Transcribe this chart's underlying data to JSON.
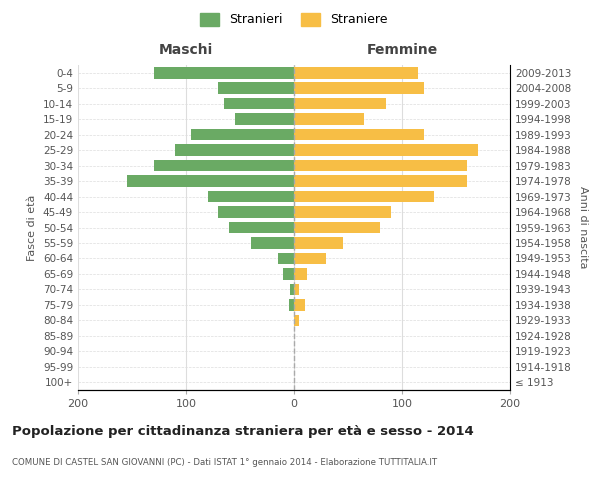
{
  "age_groups": [
    "100+",
    "95-99",
    "90-94",
    "85-89",
    "80-84",
    "75-79",
    "70-74",
    "65-69",
    "60-64",
    "55-59",
    "50-54",
    "45-49",
    "40-44",
    "35-39",
    "30-34",
    "25-29",
    "20-24",
    "15-19",
    "10-14",
    "5-9",
    "0-4"
  ],
  "birth_years": [
    "≤ 1913",
    "1914-1918",
    "1919-1923",
    "1924-1928",
    "1929-1933",
    "1934-1938",
    "1939-1943",
    "1944-1948",
    "1949-1953",
    "1954-1958",
    "1959-1963",
    "1964-1968",
    "1969-1973",
    "1974-1978",
    "1979-1983",
    "1984-1988",
    "1989-1993",
    "1994-1998",
    "1999-2003",
    "2004-2008",
    "2009-2013"
  ],
  "males": [
    0,
    0,
    0,
    0,
    0,
    5,
    4,
    10,
    15,
    40,
    60,
    70,
    80,
    155,
    130,
    110,
    95,
    55,
    65,
    70,
    130
  ],
  "females": [
    0,
    0,
    0,
    0,
    5,
    10,
    5,
    12,
    30,
    45,
    80,
    90,
    130,
    160,
    160,
    170,
    120,
    65,
    85,
    120,
    115
  ],
  "male_color": "#6aaa64",
  "female_color": "#f7be45",
  "center_line_color": "#aaaaaa",
  "grid_color": "#dddddd",
  "background_color": "#ffffff",
  "title": "Popolazione per cittadinanza straniera per età e sesso - 2014",
  "subtitle": "COMUNE DI CASTEL SAN GIOVANNI (PC) - Dati ISTAT 1° gennaio 2014 - Elaborazione TUTTITALIA.IT",
  "left_label": "Maschi",
  "right_label": "Femmine",
  "ylabel": "Fasce di età",
  "right_ylabel": "Anni di nascita",
  "xlim": 200,
  "legend_male": "Stranieri",
  "legend_female": "Straniere"
}
